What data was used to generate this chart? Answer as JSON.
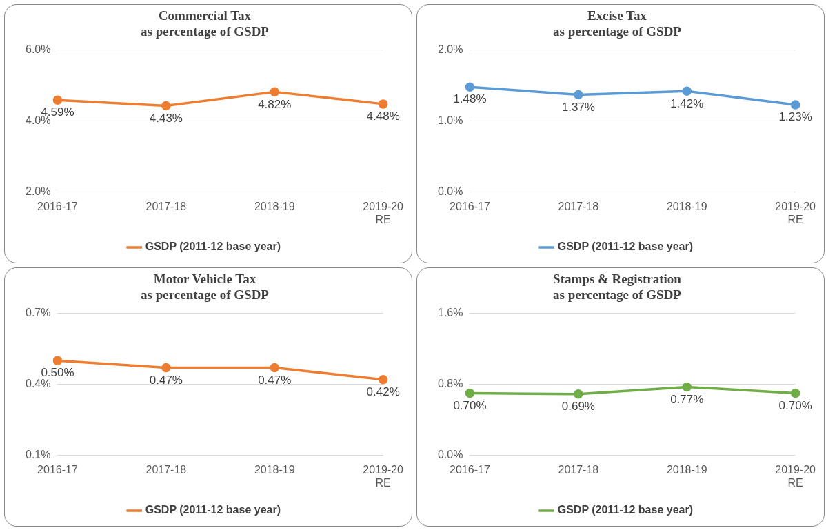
{
  "chart_data": [
    {
      "type": "line",
      "title": "Commercial Tax\nas percentage of GSDP",
      "categories": [
        "2016-17",
        "2017-18",
        "2018-19",
        "2019-20\nRE"
      ],
      "series": [
        {
          "name": "GSDP (2011-12 base year)",
          "color": "#ed7d31",
          "values": [
            4.59,
            4.43,
            4.82,
            4.48
          ],
          "value_labels": [
            "4.59%",
            "4.43%",
            "4.82%",
            "4.48%"
          ]
        }
      ],
      "ylim": [
        2,
        6
      ],
      "yticks": [
        {
          "value": 2,
          "label": "2.0%"
        },
        {
          "value": 4,
          "label": "4.0%"
        },
        {
          "value": 6,
          "label": "6.0%"
        }
      ],
      "grid": "y",
      "legend": "bottom",
      "marker": "circle"
    },
    {
      "type": "line",
      "title": "Excise Tax\nas percentage of GSDP",
      "categories": [
        "2016-17",
        "2017-18",
        "2018-19",
        "2019-20\nRE"
      ],
      "series": [
        {
          "name": "GSDP (2011-12 base year)",
          "color": "#5b9bd5",
          "values": [
            1.48,
            1.37,
            1.42,
            1.23
          ],
          "value_labels": [
            "1.48%",
            "1.37%",
            "1.42%",
            "1.23%"
          ]
        }
      ],
      "ylim": [
        0,
        2
      ],
      "yticks": [
        {
          "value": 0,
          "label": "0.0%"
        },
        {
          "value": 1,
          "label": "1.0%"
        },
        {
          "value": 2,
          "label": "2.0%"
        }
      ],
      "grid": "y",
      "legend": "bottom",
      "marker": "circle"
    },
    {
      "type": "line",
      "title": "Motor Vehicle Tax\nas percentage of GSDP",
      "categories": [
        "2016-17",
        "2017-18",
        "2018-19",
        "2019-20\nRE"
      ],
      "series": [
        {
          "name": "GSDP (2011-12 base year)",
          "color": "#ed7d31",
          "values": [
            0.5,
            0.47,
            0.47,
            0.42
          ],
          "value_labels": [
            "0.50%",
            "0.47%",
            "0.47%",
            "0.42%"
          ]
        }
      ],
      "ylim": [
        0.1,
        0.7
      ],
      "yticks": [
        {
          "value": 0.1,
          "label": "0.1%"
        },
        {
          "value": 0.4,
          "label": "0.4%"
        },
        {
          "value": 0.7,
          "label": "0.7%"
        }
      ],
      "grid": "y",
      "legend": "bottom",
      "marker": "circle"
    },
    {
      "type": "line",
      "title": "Stamps & Registration\nas percentage of GSDP",
      "categories": [
        "2016-17",
        "2017-18",
        "2018-19",
        "2019-20\nRE"
      ],
      "series": [
        {
          "name": "GSDP (2011-12 base year)",
          "color": "#70ad47",
          "values": [
            0.7,
            0.69,
            0.77,
            0.7
          ],
          "value_labels": [
            "0.70%",
            "0.69%",
            "0.77%",
            "0.70%"
          ]
        }
      ],
      "ylim": [
        0,
        1.6
      ],
      "yticks": [
        {
          "value": 0,
          "label": "0.0%"
        },
        {
          "value": 0.8,
          "label": "0.8%"
        },
        {
          "value": 1.6,
          "label": "1.6%"
        }
      ],
      "grid": "y",
      "legend": "bottom",
      "marker": "circle"
    }
  ]
}
